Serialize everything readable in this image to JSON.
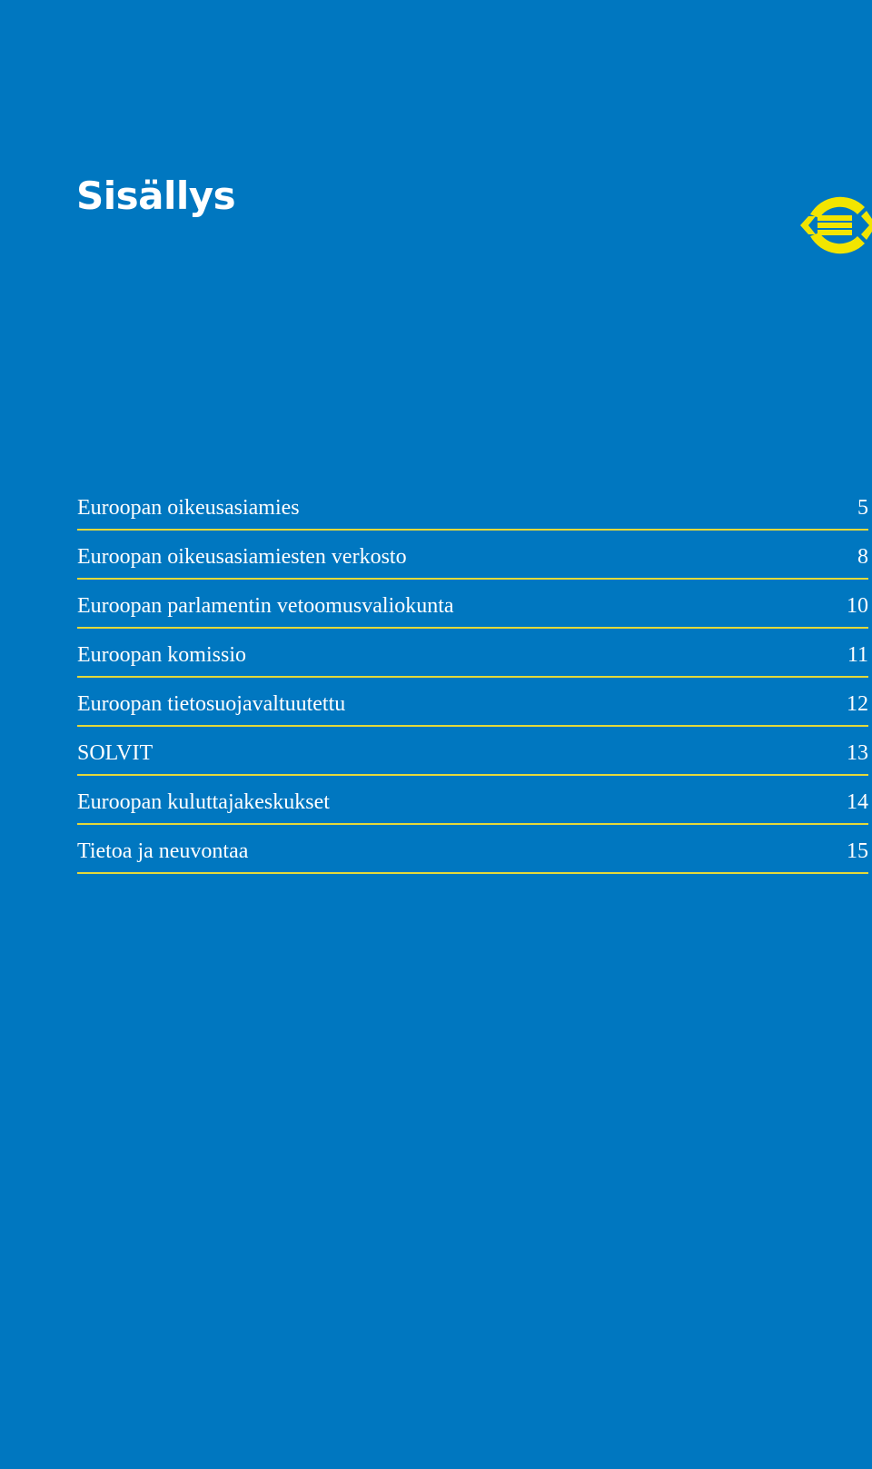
{
  "page": {
    "title": "Sisällys"
  },
  "colors": {
    "background": "#0077c0",
    "rule": "#e3d93a",
    "logo_yellow": "#f2e500",
    "text": "#ffffff"
  },
  "logo": {
    "icon": "european-ombudsman-logo-icon"
  },
  "toc": [
    {
      "title": "Euroopan oikeusasiamies",
      "page": "5"
    },
    {
      "title": "Euroopan oikeusasiamiesten verkosto",
      "page": "8"
    },
    {
      "title": "Euroopan parlamentin vetoomusvaliokunta",
      "page": "10"
    },
    {
      "title": "Euroopan komissio",
      "page": "11"
    },
    {
      "title": "Euroopan tietosuojavaltuutettu",
      "page": "12"
    },
    {
      "title": "SOLVIT",
      "page": "13"
    },
    {
      "title": "Euroopan kuluttajakeskukset",
      "page": "14"
    },
    {
      "title": "Tietoa ja neuvontaa",
      "page": "15"
    }
  ]
}
